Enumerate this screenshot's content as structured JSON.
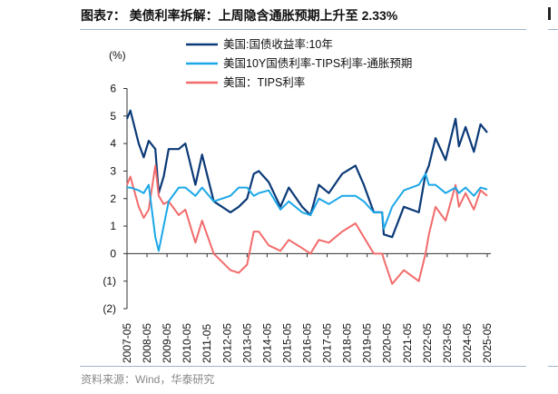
{
  "title": "图表7：  美债利率拆解：上周隐含通胀预期上升至 2.33%",
  "source": "资料来源：Wind，华泰研究",
  "chart_data": {
    "type": "line",
    "title": "图表7：  美债利率拆解：上周隐含通胀预期上升至 2.33%",
    "ylabel": "(%)",
    "ylim": [
      -2,
      6
    ],
    "yticks": [
      6,
      5,
      4,
      3,
      2,
      1,
      0,
      -1,
      -2
    ],
    "ytick_labels": [
      "6",
      "5",
      "4",
      "3",
      "2",
      "1",
      "0",
      "(1)",
      "(2)"
    ],
    "xtick_labels": [
      "2007-05",
      "2008-05",
      "2009-05",
      "2010-05",
      "2011-05",
      "2012-05",
      "2013-05",
      "2014-05",
      "2015-05",
      "2016-05",
      "2017-05",
      "2018-05",
      "2019-05",
      "2020-05",
      "2021-05",
      "2022-05",
      "2023-05",
      "2024-05",
      "2025-05"
    ],
    "legend_position": "top",
    "grid": false,
    "x": [
      "2007-05",
      "2007-07",
      "2007-12",
      "2008-03",
      "2008-06",
      "2008-10",
      "2008-12",
      "2009-03",
      "2009-06",
      "2009-12",
      "2010-04",
      "2010-10",
      "2011-02",
      "2011-09",
      "2012-07",
      "2012-12",
      "2013-05",
      "2013-09",
      "2013-12",
      "2014-06",
      "2015-01",
      "2015-06",
      "2016-02",
      "2016-07",
      "2016-12",
      "2017-06",
      "2018-02",
      "2018-10",
      "2019-03",
      "2019-09",
      "2020-02",
      "2020-03",
      "2020-08",
      "2021-03",
      "2021-12",
      "2022-04",
      "2022-06",
      "2022-10",
      "2023-04",
      "2023-10",
      "2023-12",
      "2024-04",
      "2024-09",
      "2025-01",
      "2025-05"
    ],
    "series": [
      {
        "name": "美国:国债收益率:10年",
        "color": "#0b3a78",
        "values": [
          4.9,
          5.2,
          4.0,
          3.5,
          4.1,
          3.8,
          2.2,
          2.8,
          3.8,
          3.8,
          4.0,
          2.5,
          3.6,
          1.9,
          1.5,
          1.7,
          2.0,
          2.9,
          3.0,
          2.6,
          1.7,
          2.4,
          1.7,
          1.4,
          2.5,
          2.2,
          2.9,
          3.2,
          2.5,
          1.5,
          1.5,
          0.7,
          0.6,
          1.7,
          1.5,
          2.9,
          3.2,
          4.2,
          3.4,
          4.9,
          3.9,
          4.6,
          3.7,
          4.7,
          4.4
        ]
      },
      {
        "name": "美国10Y国债利率-TIPS利率-通胀预期",
        "color": "#1aa7e8",
        "values": [
          2.4,
          2.4,
          2.3,
          2.2,
          2.5,
          0.6,
          0.1,
          1.0,
          1.9,
          2.4,
          2.4,
          2.1,
          2.4,
          1.9,
          2.1,
          2.4,
          2.4,
          2.1,
          2.2,
          2.3,
          1.6,
          1.9,
          1.5,
          1.4,
          2.0,
          1.8,
          2.1,
          2.1,
          1.9,
          1.5,
          1.5,
          0.9,
          1.7,
          2.3,
          2.5,
          2.9,
          2.5,
          2.5,
          2.2,
          2.4,
          2.2,
          2.4,
          2.1,
          2.4,
          2.33
        ]
      },
      {
        "name": "美国：TIPS利率",
        "color": "#f26b6b",
        "values": [
          2.5,
          2.8,
          1.7,
          1.3,
          1.6,
          3.2,
          2.1,
          1.8,
          1.9,
          1.4,
          1.6,
          0.4,
          1.2,
          0.0,
          -0.6,
          -0.7,
          -0.4,
          0.8,
          0.8,
          0.3,
          0.1,
          0.5,
          0.2,
          0.0,
          0.5,
          0.4,
          0.8,
          1.1,
          0.6,
          0.0,
          0.0,
          -0.2,
          -1.1,
          -0.6,
          -1.0,
          0.0,
          0.7,
          1.7,
          1.2,
          2.5,
          1.7,
          2.2,
          1.6,
          2.3,
          2.1
        ]
      }
    ]
  }
}
